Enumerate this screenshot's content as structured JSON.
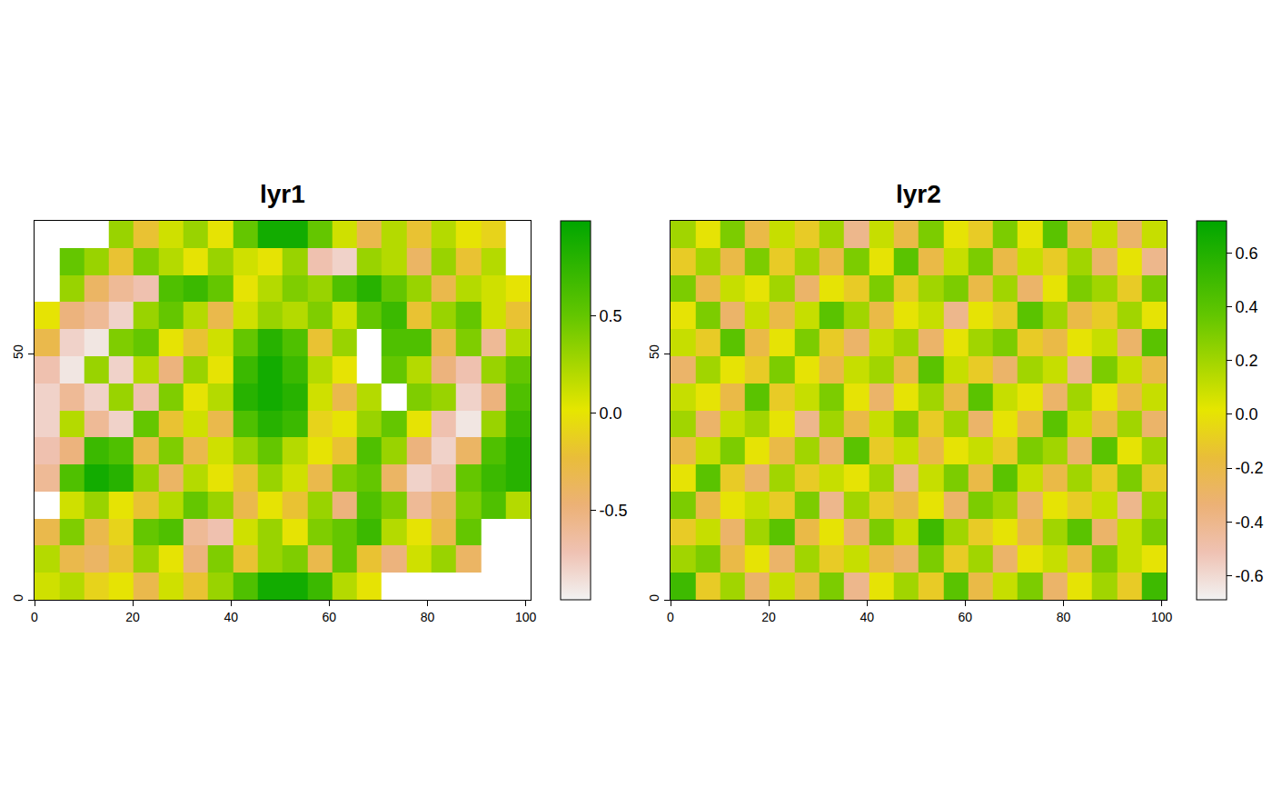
{
  "chart_data": [
    {
      "type": "heatmap",
      "title": "lyr1",
      "x": [
        2.5,
        7.6,
        12.6,
        17.7,
        22.7,
        27.8,
        32.8,
        37.9,
        42.9,
        48.0,
        53.0,
        58.1,
        63.1,
        68.2,
        73.2,
        78.3,
        83.3,
        88.4,
        93.4,
        98.5
      ],
      "y": [
        2.75,
        8.25,
        13.75,
        19.25,
        24.75,
        30.25,
        35.75,
        41.25,
        46.75,
        52.25,
        57.75,
        63.25,
        68.75,
        74.25
      ],
      "z": [
        [
          0.1,
          0.2,
          -0.1,
          0.0,
          -0.3,
          0.1,
          -0.2,
          0.3,
          0.6,
          0.9,
          0.9,
          0.7,
          0.2,
          0.0,
          null,
          null,
          null,
          null,
          null,
          null
        ],
        [
          0.2,
          -0.3,
          -0.4,
          -0.2,
          0.3,
          0.0,
          -0.5,
          0.4,
          -0.2,
          0.3,
          0.4,
          -0.3,
          0.5,
          -0.2,
          -0.5,
          0.1,
          0.3,
          -0.4,
          null,
          null
        ],
        [
          -0.3,
          0.4,
          -0.3,
          -0.1,
          0.5,
          0.6,
          -0.6,
          -0.7,
          0.1,
          0.3,
          0.0,
          0.4,
          0.5,
          0.7,
          0.2,
          0.0,
          -0.3,
          0.5,
          null,
          null
        ],
        [
          null,
          0.1,
          0.3,
          0.0,
          -0.2,
          0.2,
          0.5,
          0.3,
          -0.3,
          0.0,
          -0.2,
          0.3,
          -0.5,
          0.6,
          0.4,
          -0.6,
          -0.4,
          0.4,
          0.6,
          0.2
        ],
        [
          -0.6,
          0.6,
          0.9,
          0.8,
          0.3,
          -0.4,
          0.2,
          0.0,
          -0.2,
          0.3,
          0.1,
          -0.3,
          0.4,
          0.5,
          -0.4,
          -0.8,
          -0.7,
          0.5,
          0.7,
          0.8
        ],
        [
          -0.7,
          -0.5,
          0.7,
          0.6,
          -0.3,
          0.4,
          -0.3,
          0.1,
          0.3,
          0.5,
          0.2,
          0.0,
          -0.2,
          0.6,
          0.3,
          -0.5,
          -0.8,
          -0.4,
          0.6,
          0.8
        ],
        [
          -0.8,
          0.2,
          -0.6,
          -0.8,
          0.5,
          -0.2,
          0.1,
          -0.3,
          0.6,
          0.8,
          0.7,
          -0.1,
          0.0,
          0.3,
          0.5,
          0.0,
          -0.7,
          -0.9,
          0.3,
          0.7
        ],
        [
          -0.8,
          -0.6,
          -0.8,
          0.3,
          -0.7,
          0.4,
          0.0,
          0.2,
          0.8,
          0.9,
          0.8,
          0.1,
          -0.3,
          0.2,
          null,
          0.4,
          0.3,
          -0.8,
          -0.5,
          0.6
        ],
        [
          -0.7,
          -0.9,
          0.3,
          -0.8,
          0.2,
          -0.5,
          0.3,
          0.0,
          0.7,
          0.9,
          0.7,
          0.2,
          0.0,
          null,
          0.5,
          0.2,
          -0.5,
          -0.7,
          0.3,
          0.5
        ],
        [
          -0.3,
          -0.8,
          -0.9,
          0.4,
          0.5,
          0.0,
          -0.2,
          0.1,
          0.5,
          0.8,
          0.6,
          -0.2,
          0.3,
          null,
          0.6,
          0.6,
          -0.3,
          0.4,
          -0.6,
          0.2
        ],
        [
          0.0,
          -0.5,
          -0.6,
          -0.8,
          0.3,
          0.5,
          0.2,
          -0.3,
          0.1,
          0.3,
          0.2,
          0.4,
          0.1,
          0.5,
          0.7,
          -0.2,
          0.3,
          0.5,
          0.1,
          -0.2
        ],
        [
          null,
          0.3,
          -0.4,
          -0.6,
          -0.7,
          0.6,
          0.7,
          0.5,
          0.0,
          0.2,
          0.4,
          0.3,
          0.6,
          0.8,
          0.5,
          0.3,
          -0.3,
          0.2,
          0.1,
          0.0
        ],
        [
          null,
          0.5,
          0.3,
          -0.2,
          0.4,
          0.2,
          0.0,
          0.3,
          0.1,
          0.0,
          0.3,
          -0.7,
          -0.8,
          0.3,
          0.2,
          -0.4,
          0.3,
          -0.2,
          0.2,
          null
        ],
        [
          null,
          null,
          null,
          0.3,
          -0.2,
          0.1,
          0.3,
          0.0,
          0.5,
          0.9,
          0.9,
          0.5,
          0.1,
          -0.3,
          0.2,
          -0.2,
          0.2,
          0.0,
          -0.1,
          null
        ]
      ],
      "xlim": [
        0,
        101
      ],
      "ylim": [
        0,
        77
      ],
      "xticks": [
        0,
        20,
        40,
        60,
        80,
        100
      ],
      "yticks": [
        0,
        50
      ],
      "colorbar": {
        "range": [
          -0.96,
          0.99
        ],
        "ticks": [
          -0.5,
          {
            "value": 0,
            "label": "0.0"
          },
          0.5
        ]
      }
    },
    {
      "type": "heatmap",
      "title": "lyr2",
      "x": [
        2.5,
        7.6,
        12.6,
        17.7,
        22.7,
        27.8,
        32.8,
        37.9,
        42.9,
        48.0,
        53.0,
        58.1,
        63.1,
        68.2,
        73.2,
        78.3,
        83.3,
        88.4,
        93.4,
        98.5
      ],
      "y": [
        2.75,
        8.25,
        13.75,
        19.25,
        24.75,
        30.25,
        35.75,
        41.25,
        46.75,
        52.25,
        57.75,
        63.25,
        68.75,
        74.25
      ],
      "z": [
        [
          0.5,
          -0.1,
          0.2,
          -0.3,
          0.1,
          -0.2,
          0.3,
          -0.4,
          0.0,
          0.2,
          -0.1,
          0.4,
          -0.2,
          0.1,
          0.3,
          -0.3,
          0.0,
          0.2,
          -0.1,
          0.5
        ],
        [
          0.2,
          0.3,
          -0.2,
          0.0,
          -0.3,
          0.2,
          -0.1,
          0.1,
          -0.2,
          -0.3,
          0.3,
          -0.1,
          0.2,
          -0.3,
          0.0,
          0.1,
          -0.2,
          0.3,
          0.1,
          0.0
        ],
        [
          -0.1,
          0.1,
          -0.3,
          0.2,
          0.4,
          -0.2,
          0.0,
          -0.3,
          0.3,
          0.1,
          0.5,
          0.2,
          -0.1,
          0.0,
          -0.2,
          0.2,
          0.4,
          -0.3,
          0.1,
          0.3
        ],
        [
          0.3,
          -0.2,
          0.0,
          0.1,
          -0.1,
          0.3,
          -0.4,
          0.2,
          -0.1,
          -0.2,
          0.0,
          -0.3,
          0.3,
          0.2,
          -0.3,
          0.0,
          -0.1,
          0.1,
          -0.4,
          0.2
        ],
        [
          0.0,
          0.4,
          -0.1,
          -0.3,
          0.2,
          -0.1,
          0.1,
          0.0,
          0.2,
          -0.4,
          0.1,
          0.3,
          -0.2,
          0.4,
          0.1,
          -0.2,
          0.2,
          -0.1,
          0.3,
          -0.1
        ],
        [
          -0.2,
          0.1,
          0.3,
          0.0,
          -0.2,
          0.2,
          -0.3,
          0.4,
          -0.1,
          0.1,
          -0.2,
          0.0,
          0.1,
          -0.1,
          0.3,
          0.2,
          -0.3,
          0.4,
          0.0,
          0.2
        ],
        [
          0.2,
          -0.3,
          0.1,
          0.2,
          0.0,
          -0.4,
          0.2,
          -0.2,
          0.1,
          0.3,
          -0.1,
          0.2,
          -0.3,
          0.0,
          -0.2,
          0.4,
          0.1,
          -0.2,
          0.2,
          -0.3
        ],
        [
          0.1,
          0.0,
          -0.2,
          0.4,
          -0.1,
          0.1,
          0.3,
          0.0,
          -0.3,
          0.0,
          0.2,
          -0.2,
          0.4,
          0.1,
          0.0,
          -0.3,
          0.2,
          0.0,
          -0.2,
          0.1
        ],
        [
          -0.3,
          0.2,
          0.0,
          -0.1,
          0.3,
          0.0,
          -0.2,
          0.1,
          0.2,
          -0.2,
          0.4,
          0.1,
          -0.1,
          -0.3,
          0.2,
          0.1,
          -0.4,
          0.3,
          0.1,
          -0.2
        ],
        [
          0.1,
          -0.1,
          0.4,
          -0.2,
          0.0,
          0.3,
          -0.1,
          -0.3,
          0.1,
          0.2,
          -0.3,
          0.0,
          0.2,
          0.3,
          -0.1,
          -0.2,
          0.0,
          0.1,
          -0.3,
          0.4
        ],
        [
          0.0,
          0.3,
          -0.3,
          0.1,
          -0.2,
          0.1,
          0.4,
          0.2,
          -0.2,
          0.0,
          0.1,
          -0.4,
          0.0,
          -0.1,
          0.4,
          0.2,
          -0.2,
          -0.1,
          0.2,
          0.0
        ],
        [
          0.3,
          -0.2,
          0.1,
          0.0,
          0.2,
          -0.3,
          0.0,
          -0.1,
          0.3,
          -0.1,
          0.2,
          0.3,
          -0.2,
          0.2,
          -0.3,
          0.0,
          0.3,
          0.2,
          -0.1,
          0.3
        ],
        [
          -0.1,
          0.2,
          -0.2,
          0.3,
          -0.1,
          0.2,
          -0.2,
          0.3,
          0.0,
          0.4,
          -0.2,
          0.1,
          0.3,
          -0.2,
          0.1,
          -0.1,
          0.2,
          -0.3,
          0.0,
          -0.4
        ],
        [
          0.2,
          0.0,
          0.3,
          -0.2,
          0.1,
          -0.1,
          0.2,
          -0.4,
          0.1,
          -0.2,
          0.3,
          0.0,
          -0.1,
          0.3,
          0.0,
          0.4,
          -0.2,
          0.1,
          -0.3,
          0.1
        ]
      ],
      "xlim": [
        0,
        101
      ],
      "ylim": [
        0,
        77
      ],
      "xticks": [
        0,
        20,
        40,
        60,
        80,
        100
      ],
      "yticks": [
        0,
        50
      ],
      "colorbar": {
        "range": [
          -0.69,
          0.72
        ],
        "ticks": [
          -0.6,
          -0.4,
          -0.2,
          {
            "value": 0,
            "label": "0.0"
          },
          0.2,
          0.4,
          0.6
        ]
      }
    }
  ]
}
